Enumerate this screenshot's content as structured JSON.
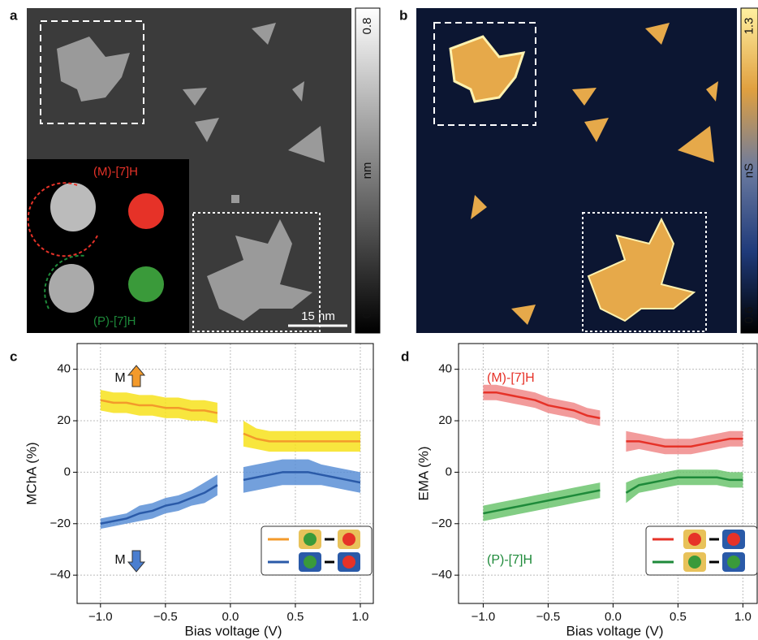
{
  "panel_labels": [
    "a",
    "b",
    "c",
    "d"
  ],
  "images": [
    {
      "annotations": [
        "(M)-[7]H",
        "(P)-[7]H",
        "15 nm"
      ],
      "colorbar": {
        "lim": [
          0,
          0.8
        ],
        "ticks": [
          0,
          0.8
        ],
        "label": "nm",
        "colors": [
          "#000000",
          "#ffffff"
        ]
      }
    },
    {
      "colorbar": {
        "lim": [
          0.6,
          1.3
        ],
        "ticks": [
          0.6,
          1.3
        ],
        "label": "nS",
        "colors": [
          "#000000",
          "#1f3a7a",
          "#6a7aa0",
          "#e0a040",
          "#fff0a0"
        ]
      }
    }
  ],
  "chart_data": [
    {
      "type": "line",
      "xlabel": "Bias voltage (V)",
      "ylabel": "MChA (%)",
      "grid": true,
      "legend": "lower right",
      "annotations": [
        "M",
        "M"
      ],
      "xlim": [
        -1.18,
        1.1
      ],
      "ylim": [
        -51,
        50
      ],
      "xticks": [
        {
          "value": -1.0,
          "label": "−1.0"
        },
        {
          "value": -0.5,
          "label": "−0.5"
        },
        {
          "value": 0,
          "label": "0.0"
        },
        {
          "value": 0.5,
          "label": "0.5"
        },
        {
          "value": 1.0,
          "label": "1.0"
        }
      ],
      "yticks": [
        {
          "value": -40,
          "label": "−40"
        },
        {
          "value": -20,
          "label": "−20"
        },
        0,
        20,
        40
      ],
      "x": [
        -1.0,
        -0.9,
        -0.8,
        -0.7,
        -0.6,
        -0.5,
        -0.4,
        -0.3,
        -0.2,
        -0.1,
        0,
        0.1,
        0.2,
        0.3,
        0.4,
        0.5,
        0.6,
        0.7,
        0.8,
        0.9,
        1.0
      ],
      "series": [
        {
          "color": "#f39a2b",
          "band_color": "#f7e21c",
          "values": [
            28,
            27,
            27,
            26,
            26,
            25,
            25,
            24,
            24,
            23,
            null,
            15,
            13,
            12,
            12,
            12,
            12,
            12,
            12,
            12,
            12
          ],
          "errors": [
            4,
            4,
            4,
            4,
            4,
            4,
            4,
            4,
            4,
            4,
            null,
            5,
            4,
            4,
            4,
            4,
            4,
            4,
            4,
            4,
            4
          ]
        },
        {
          "color": "#2a5aa8",
          "band_color": "#5b8fd6",
          "values": [
            -20,
            -19,
            -18,
            -16,
            -15,
            -13,
            -12,
            -10,
            -8,
            -5,
            null,
            -3,
            -2,
            -1,
            0,
            0,
            0,
            -1,
            -2,
            -3,
            -4
          ],
          "errors": [
            2,
            2,
            2,
            3,
            3,
            3,
            3,
            3,
            4,
            4,
            null,
            5,
            5,
            5,
            5,
            5,
            5,
            4,
            4,
            4,
            4
          ]
        }
      ]
    },
    {
      "type": "line",
      "xlabel": "Bias voltage (V)",
      "ylabel": "EMA (%)",
      "grid": true,
      "legend": "lower right",
      "xlim": [
        -1.19,
        1.11
      ],
      "ylim": [
        -51,
        50
      ],
      "xticks": [
        {
          "value": -1.0,
          "label": "−1.0"
        },
        {
          "value": -0.5,
          "label": "−0.5"
        },
        {
          "value": 0,
          "label": "0.0"
        },
        {
          "value": 0.5,
          "label": "0.5"
        },
        {
          "value": 1.0,
          "label": "1.0"
        }
      ],
      "yticks": [
        {
          "value": -40,
          "label": "−40"
        },
        {
          "value": -20,
          "label": "−20"
        },
        0,
        20,
        40
      ],
      "x": [
        -1.0,
        -0.9,
        -0.8,
        -0.7,
        -0.6,
        -0.5,
        -0.4,
        -0.3,
        -0.2,
        -0.1,
        0,
        0.1,
        0.2,
        0.3,
        0.4,
        0.5,
        0.6,
        0.7,
        0.8,
        0.9,
        1.0
      ],
      "series": [
        {
          "name": "(M)-[7]H",
          "color": "#e63228",
          "band_color": "#f08a8a",
          "values": [
            31,
            31,
            30,
            29,
            28,
            26,
            25,
            24,
            22,
            21,
            null,
            12,
            12,
            11,
            10,
            10,
            10,
            11,
            12,
            13,
            13
          ],
          "errors": [
            3,
            3,
            3,
            3,
            3,
            3,
            3,
            3,
            3,
            3,
            null,
            4,
            3,
            3,
            3,
            3,
            3,
            3,
            3,
            3,
            3
          ]
        },
        {
          "name": "(P)-[7]H",
          "color": "#1e8a3a",
          "band_color": "#6cc46e",
          "values": [
            -16,
            -15,
            -14,
            -13,
            -12,
            -11,
            -10,
            -9,
            -8,
            -7,
            null,
            -8,
            -5,
            -4,
            -3,
            -2,
            -2,
            -2,
            -2,
            -3,
            -3
          ],
          "errors": [
            3,
            3,
            3,
            3,
            3,
            3,
            3,
            3,
            3,
            3,
            null,
            4,
            3,
            3,
            3,
            3,
            3,
            3,
            3,
            3,
            3
          ]
        }
      ]
    }
  ]
}
